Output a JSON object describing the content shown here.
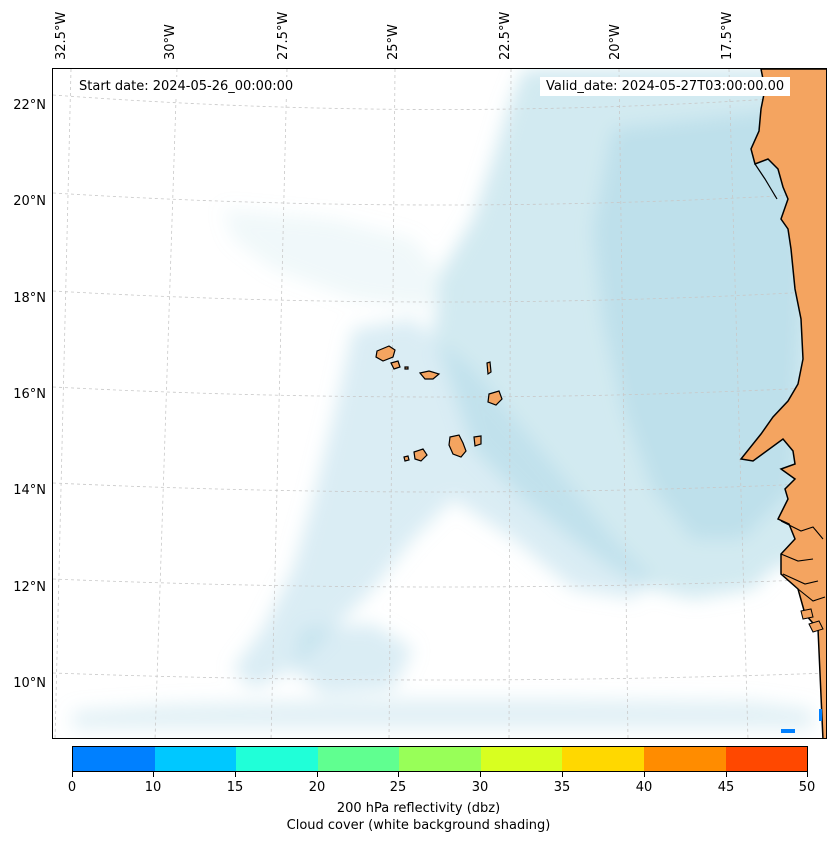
{
  "map": {
    "start_date_text": "Start date: 2024-05-26_00:00:00",
    "valid_date_text": "Valid_date: 2024-05-27T03:00:00.00",
    "longitude_labels": [
      "32.5°W",
      "30°W",
      "27.5°W",
      "25°W",
      "22.5°W",
      "20°W",
      "17.5°W"
    ],
    "latitude_labels": [
      "22°N",
      "20°N",
      "18°N",
      "16°N",
      "14°N",
      "12°N",
      "10°N"
    ],
    "land_color": "#f4a460",
    "cloud_color": "#add8e6"
  },
  "colorbar": {
    "ticks": [
      "0",
      "10",
      "15",
      "20",
      "25",
      "30",
      "35",
      "40",
      "45",
      "50"
    ],
    "colors": [
      "#0080ff",
      "#00c8ff",
      "#20ffd8",
      "#60ff90",
      "#98ff58",
      "#d8ff20",
      "#ffd800",
      "#ff8c00",
      "#ff4800"
    ],
    "label_line1": "200 hPa reflectivity (dbz)",
    "label_line2": "Cloud cover (white background shading)"
  }
}
